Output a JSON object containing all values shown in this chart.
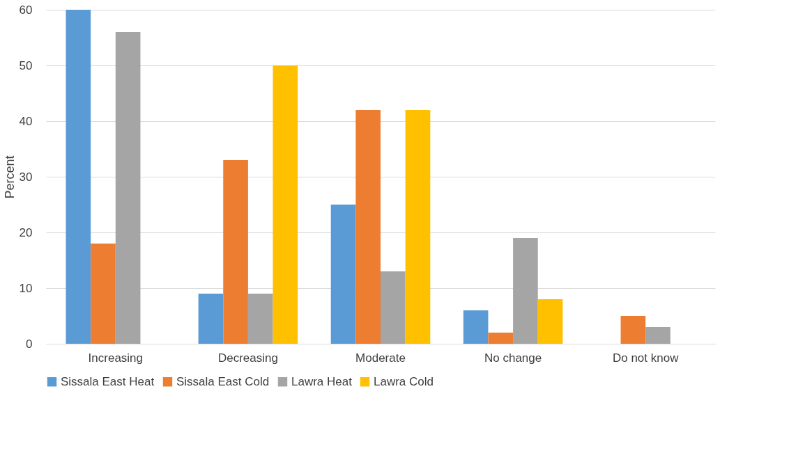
{
  "chart_data": {
    "type": "bar",
    "ylabel": "Percent",
    "categories": [
      "Increasing",
      "Decreasing",
      "Moderate",
      "No change",
      "Do not know"
    ],
    "series": [
      {
        "name": "Sissala East Heat",
        "color": "#5b9bd5",
        "values": [
          60,
          9,
          25,
          6,
          null
        ]
      },
      {
        "name": "Sissala East Cold",
        "color": "#ed7d31",
        "values": [
          18,
          33,
          42,
          2,
          5
        ]
      },
      {
        "name": "Lawra Heat",
        "color": "#a5a5a5",
        "values": [
          56,
          9,
          13,
          19,
          3
        ]
      },
      {
        "name": "Lawra Cold",
        "color": "#ffc000",
        "values": [
          null,
          50,
          42,
          8,
          null
        ]
      }
    ],
    "ylim": [
      0,
      60
    ],
    "yticks": [
      0,
      10,
      20,
      30,
      40,
      50,
      60
    ],
    "grid": "y",
    "legend": "bottom"
  }
}
